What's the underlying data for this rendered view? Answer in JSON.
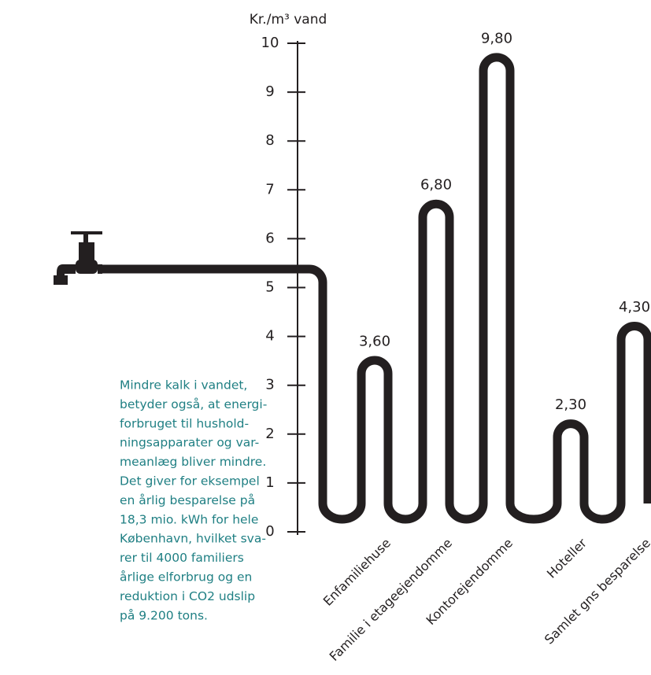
{
  "chart_data": {
    "type": "pipe-bar",
    "y_label": "Kr./m³ vand",
    "categories": [
      "Enfamiliehuse",
      "Familie i etageejendomme",
      "Kontorejendomme",
      "Hoteller",
      "Samlet gns besparelse"
    ],
    "values": [
      3.6,
      6.8,
      9.8,
      2.3,
      4.3
    ],
    "value_labels": [
      "3,60",
      "6,80",
      "9,80",
      "2,30",
      "4,30"
    ],
    "color": "#231f20",
    "ylim": [
      0,
      10
    ],
    "yticks": [
      0,
      1,
      2,
      3,
      4,
      5,
      6,
      7,
      8,
      9,
      10
    ],
    "annotation_lines": [
      "Mindre kalk i vandet,",
      "betyder også, at energi-",
      "forbruget til hushold-",
      "ningsapparater og var-",
      "meanlæg bliver mindre.",
      "Det giver for eksempel",
      "en årlig besparelse på",
      "18,3 mio. kWh for hele",
      "København, hvilket sva-",
      "rer til 4000 familiers",
      "årlige elforbrug og en",
      "reduktion i CO2 udslip",
      "på 9.200 tons."
    ],
    "annotation_color": "#1f7f83"
  }
}
